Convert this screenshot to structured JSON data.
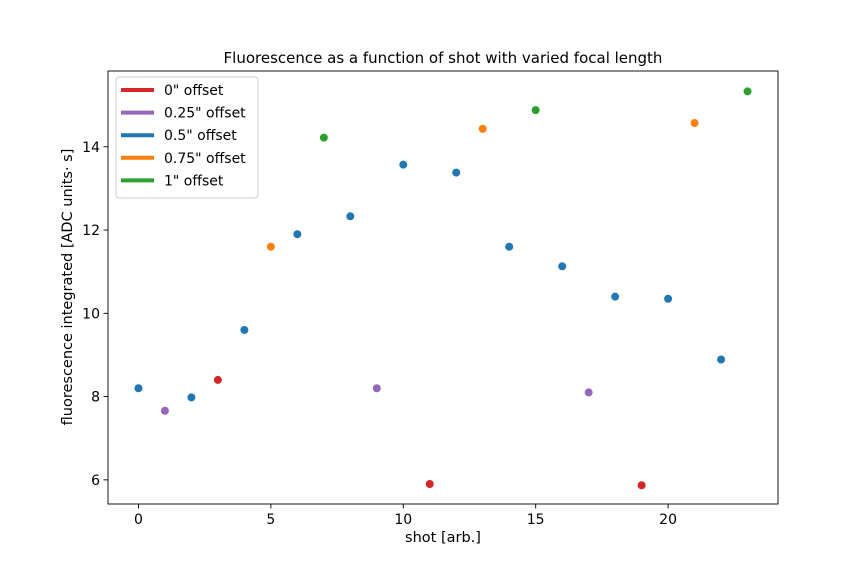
{
  "chart_data": {
    "type": "scatter",
    "title": "Fluorescence as a function of shot with varied focal length",
    "xlabel": "shot [arb.]",
    "ylabel": "fluorescence integrated [ADC units· s]",
    "xlim": [
      -1.15,
      24.15
    ],
    "ylim": [
      5.42,
      15.82
    ],
    "xticks": [
      0,
      5,
      10,
      15,
      20
    ],
    "yticks": [
      6,
      8,
      10,
      12,
      14
    ],
    "grid": false,
    "legend_position": "top-left",
    "series": [
      {
        "name": "0\" offset",
        "color": "#d62728",
        "x": [
          3,
          11,
          19
        ],
        "y": [
          8.4,
          5.9,
          5.87
        ]
      },
      {
        "name": "0.25\" offset",
        "color": "#9467bd",
        "x": [
          1,
          9,
          17
        ],
        "y": [
          7.66,
          8.2,
          8.1
        ]
      },
      {
        "name": "0.5\" offset",
        "color": "#1f77b4",
        "x": [
          0,
          2,
          4,
          6,
          8,
          10,
          12,
          14,
          16,
          18,
          20,
          22
        ],
        "y": [
          8.2,
          7.98,
          9.6,
          11.9,
          12.33,
          13.57,
          13.38,
          11.6,
          11.13,
          10.4,
          10.35,
          8.89
        ]
      },
      {
        "name": "0.75\" offset",
        "color": "#ff7f0e",
        "x": [
          5,
          13,
          21
        ],
        "y": [
          11.6,
          14.43,
          14.57
        ]
      },
      {
        "name": "1\" offset",
        "color": "#2ca02c",
        "x": [
          7,
          15,
          23
        ],
        "y": [
          14.22,
          14.88,
          15.33
        ]
      }
    ]
  }
}
